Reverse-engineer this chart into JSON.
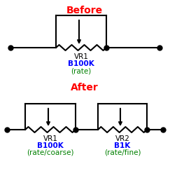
{
  "title_before": "Before",
  "title_after": "After",
  "title_color": "#ff0000",
  "bg_color": "#ffffff",
  "line_color": "#000000",
  "label1_name": "VR1",
  "label1_value": "B100K",
  "label1_func": "(rate)",
  "label2_name": "VR1",
  "label2_value": "B100K",
  "label2_func": "(rate/coarse)",
  "label3_name": "VR2",
  "label3_value": "B1K",
  "label3_func": "(rate/fine)",
  "name_color": "#000000",
  "value_color": "#0000ff",
  "func_color": "#008000",
  "lw": 1.5,
  "dot_ms": 5.0,
  "font_title": 10,
  "font_label": 7.5
}
